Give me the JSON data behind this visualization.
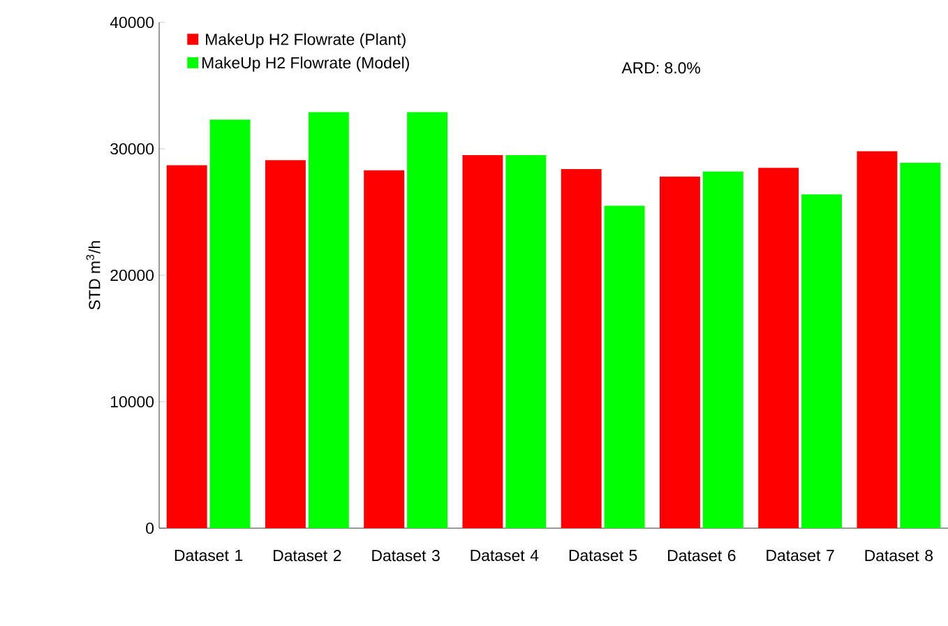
{
  "chart_data": {
    "type": "bar",
    "ylabel": "STD m$^{3}$/h",
    "categories": [
      "Dataset 1",
      "Dataset 2",
      "Dataset 3",
      "Dataset 4",
      "Dataset 5",
      "Dataset 6",
      "Dataset 7",
      "Dataset 8"
    ],
    "series": [
      {
        "name": "MakeUp H2 Flowrate (Plant)",
        "color": "#ff0000",
        "values": [
          28700,
          29100,
          28300,
          29500,
          28400,
          27800,
          28500,
          29800
        ]
      },
      {
        "name": "MakeUp H2 Flowrate (Model)",
        "color": "#00ff00",
        "values": [
          32300,
          32900,
          32900,
          29500,
          25500,
          28200,
          26400,
          28900
        ]
      }
    ],
    "ylim": [
      0,
      40000
    ],
    "yticks": [
      0,
      10000,
      20000,
      30000,
      40000
    ],
    "annotations": [
      "ARD: 8.0%"
    ],
    "legend": "top left",
    "grid": false
  }
}
